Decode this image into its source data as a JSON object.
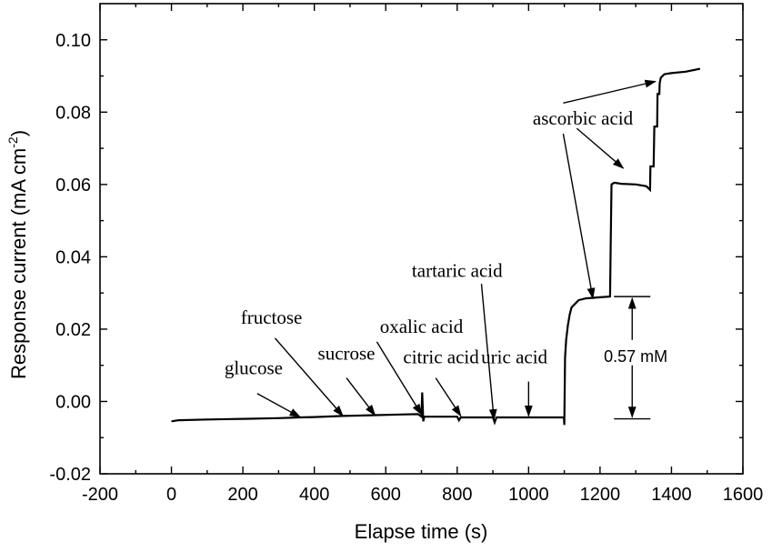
{
  "chart_data": {
    "type": "line",
    "xlabel": "Elapse time (s)",
    "ylabel": "Response current (mA cm",
    "ylabel_sup": "-2",
    "ylabel_close": ")",
    "xlim": [
      -200,
      1600
    ],
    "ylim": [
      -0.02,
      0.11
    ],
    "x_ticks": [
      -200,
      0,
      200,
      400,
      600,
      800,
      1000,
      1200,
      1400,
      1600
    ],
    "x_tick_labels": [
      "-200",
      "0",
      "200",
      "400",
      "600",
      "800",
      "1000",
      "1200",
      "1400",
      "1600"
    ],
    "y_ticks": [
      -0.02,
      0.0,
      0.02,
      0.04,
      0.06,
      0.08,
      0.1
    ],
    "y_tick_labels": [
      "-0.02",
      "0.00",
      "0.02",
      "0.04",
      "0.06",
      "0.08",
      "0.10"
    ],
    "series": [
      {
        "x": [
          0,
          20,
          100,
          200,
          300,
          360,
          400,
          480,
          560,
          640,
          690,
          700,
          702,
          705,
          708,
          710,
          800,
          805,
          810,
          900,
          905,
          910,
          1000,
          1050,
          1099,
          1100,
          1102,
          1105,
          1110,
          1115,
          1120,
          1130,
          1140,
          1160,
          1200,
          1228,
          1230,
          1232,
          1240,
          1260,
          1300,
          1330,
          1340,
          1341,
          1350,
          1352,
          1360,
          1361,
          1366,
          1367,
          1370,
          1380,
          1400,
          1440,
          1480
        ],
        "y": [
          -0.0055,
          -0.0052,
          -0.005,
          -0.0048,
          -0.0046,
          -0.0044,
          -0.0043,
          -0.004,
          -0.0038,
          -0.0036,
          -0.0035,
          -0.0042,
          0.0025,
          -0.0055,
          -0.0042,
          -0.0042,
          -0.0042,
          -0.0052,
          -0.0044,
          -0.0044,
          -0.0058,
          -0.0044,
          -0.0044,
          -0.0044,
          -0.0044,
          -0.0065,
          0.012,
          0.017,
          0.021,
          0.024,
          0.026,
          0.027,
          0.028,
          0.0285,
          0.0288,
          0.029,
          0.045,
          0.06,
          0.0605,
          0.0602,
          0.06,
          0.0595,
          0.0585,
          0.065,
          0.065,
          0.076,
          0.076,
          0.085,
          0.085,
          0.088,
          0.0895,
          0.0905,
          0.0908,
          0.0912,
          0.092
        ]
      }
    ],
    "annotations": [
      {
        "text": "glucose",
        "label_x": 230,
        "label_y": 0.0075,
        "tip_x": 360,
        "tip_y": -0.0043,
        "tail_x": 240,
        "tail_y": 0.0022
      },
      {
        "text": "fructose",
        "label_x": 280,
        "label_y": 0.0215,
        "tip_x": 480,
        "tip_y": -0.004,
        "tail_x": 290,
        "tail_y": 0.0175
      },
      {
        "text": "sucrose",
        "label_x": 490,
        "label_y": 0.0115,
        "tip_x": 570,
        "tip_y": -0.0038,
        "tail_x": 490,
        "tail_y": 0.0065
      },
      {
        "text": "oxalic acid",
        "label_x": 700,
        "label_y": 0.019,
        "tip_x": 700,
        "tip_y": -0.0036,
        "tail_x": 575,
        "tail_y": 0.0165
      },
      {
        "text": "citric acid",
        "label_x": 755,
        "label_y": 0.0105,
        "tip_x": 810,
        "tip_y": -0.004,
        "tail_x": 740,
        "tail_y": 0.0065
      },
      {
        "text": "tartaric acid",
        "label_x": 800,
        "label_y": 0.0345,
        "tip_x": 903,
        "tip_y": -0.005,
        "tail_x": 868,
        "tail_y": 0.0325
      },
      {
        "text": "uric acid",
        "label_x": 960,
        "label_y": 0.0105,
        "tip_x": 1000,
        "tip_y": -0.004,
        "tail_x": 1000,
        "tail_y": 0.0055
      },
      {
        "text": "ascorbic acid",
        "label_x": 1152,
        "label_y": 0.0765,
        "tip_x": 1180,
        "tip_y": 0.0285,
        "tail_x": 1097,
        "tail_y": 0.074
      },
      {
        "text": "",
        "tip_x": 1265,
        "tip_y": 0.0645,
        "tail_x": 1135,
        "tail_y": 0.0755
      },
      {
        "text": "",
        "tip_x": 1355,
        "tip_y": 0.0885,
        "tail_x": 1097,
        "tail_y": 0.0825
      }
    ],
    "scale_bar": {
      "text": "0.57 mM",
      "x": 1290,
      "y_top": 0.029,
      "y_bottom": -0.0048,
      "label_x": 1300,
      "label_y": 0.0125
    }
  }
}
